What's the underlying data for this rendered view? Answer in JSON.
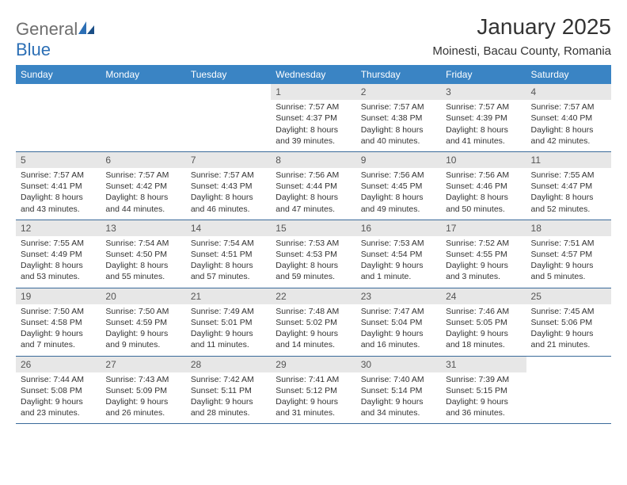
{
  "brand": {
    "name_a": "General",
    "name_b": "Blue"
  },
  "title": "January 2025",
  "location": "Moinesti, Bacau County, Romania",
  "colors": {
    "header_bg": "#3a84c4",
    "header_text": "#ffffff",
    "daynum_bg": "#e7e7e7",
    "rule": "#3a6a9a",
    "text": "#333333",
    "logo_gray": "#6e6e6e",
    "logo_blue": "#2c6fb5"
  },
  "day_labels": [
    "Sunday",
    "Monday",
    "Tuesday",
    "Wednesday",
    "Thursday",
    "Friday",
    "Saturday"
  ],
  "weeks": [
    [
      {
        "n": "",
        "sr": "",
        "ss": "",
        "dl": ""
      },
      {
        "n": "",
        "sr": "",
        "ss": "",
        "dl": ""
      },
      {
        "n": "",
        "sr": "",
        "ss": "",
        "dl": ""
      },
      {
        "n": "1",
        "sr": "Sunrise: 7:57 AM",
        "ss": "Sunset: 4:37 PM",
        "dl": "Daylight: 8 hours and 39 minutes."
      },
      {
        "n": "2",
        "sr": "Sunrise: 7:57 AM",
        "ss": "Sunset: 4:38 PM",
        "dl": "Daylight: 8 hours and 40 minutes."
      },
      {
        "n": "3",
        "sr": "Sunrise: 7:57 AM",
        "ss": "Sunset: 4:39 PM",
        "dl": "Daylight: 8 hours and 41 minutes."
      },
      {
        "n": "4",
        "sr": "Sunrise: 7:57 AM",
        "ss": "Sunset: 4:40 PM",
        "dl": "Daylight: 8 hours and 42 minutes."
      }
    ],
    [
      {
        "n": "5",
        "sr": "Sunrise: 7:57 AM",
        "ss": "Sunset: 4:41 PM",
        "dl": "Daylight: 8 hours and 43 minutes."
      },
      {
        "n": "6",
        "sr": "Sunrise: 7:57 AM",
        "ss": "Sunset: 4:42 PM",
        "dl": "Daylight: 8 hours and 44 minutes."
      },
      {
        "n": "7",
        "sr": "Sunrise: 7:57 AM",
        "ss": "Sunset: 4:43 PM",
        "dl": "Daylight: 8 hours and 46 minutes."
      },
      {
        "n": "8",
        "sr": "Sunrise: 7:56 AM",
        "ss": "Sunset: 4:44 PM",
        "dl": "Daylight: 8 hours and 47 minutes."
      },
      {
        "n": "9",
        "sr": "Sunrise: 7:56 AM",
        "ss": "Sunset: 4:45 PM",
        "dl": "Daylight: 8 hours and 49 minutes."
      },
      {
        "n": "10",
        "sr": "Sunrise: 7:56 AM",
        "ss": "Sunset: 4:46 PM",
        "dl": "Daylight: 8 hours and 50 minutes."
      },
      {
        "n": "11",
        "sr": "Sunrise: 7:55 AM",
        "ss": "Sunset: 4:47 PM",
        "dl": "Daylight: 8 hours and 52 minutes."
      }
    ],
    [
      {
        "n": "12",
        "sr": "Sunrise: 7:55 AM",
        "ss": "Sunset: 4:49 PM",
        "dl": "Daylight: 8 hours and 53 minutes."
      },
      {
        "n": "13",
        "sr": "Sunrise: 7:54 AM",
        "ss": "Sunset: 4:50 PM",
        "dl": "Daylight: 8 hours and 55 minutes."
      },
      {
        "n": "14",
        "sr": "Sunrise: 7:54 AM",
        "ss": "Sunset: 4:51 PM",
        "dl": "Daylight: 8 hours and 57 minutes."
      },
      {
        "n": "15",
        "sr": "Sunrise: 7:53 AM",
        "ss": "Sunset: 4:53 PM",
        "dl": "Daylight: 8 hours and 59 minutes."
      },
      {
        "n": "16",
        "sr": "Sunrise: 7:53 AM",
        "ss": "Sunset: 4:54 PM",
        "dl": "Daylight: 9 hours and 1 minute."
      },
      {
        "n": "17",
        "sr": "Sunrise: 7:52 AM",
        "ss": "Sunset: 4:55 PM",
        "dl": "Daylight: 9 hours and 3 minutes."
      },
      {
        "n": "18",
        "sr": "Sunrise: 7:51 AM",
        "ss": "Sunset: 4:57 PM",
        "dl": "Daylight: 9 hours and 5 minutes."
      }
    ],
    [
      {
        "n": "19",
        "sr": "Sunrise: 7:50 AM",
        "ss": "Sunset: 4:58 PM",
        "dl": "Daylight: 9 hours and 7 minutes."
      },
      {
        "n": "20",
        "sr": "Sunrise: 7:50 AM",
        "ss": "Sunset: 4:59 PM",
        "dl": "Daylight: 9 hours and 9 minutes."
      },
      {
        "n": "21",
        "sr": "Sunrise: 7:49 AM",
        "ss": "Sunset: 5:01 PM",
        "dl": "Daylight: 9 hours and 11 minutes."
      },
      {
        "n": "22",
        "sr": "Sunrise: 7:48 AM",
        "ss": "Sunset: 5:02 PM",
        "dl": "Daylight: 9 hours and 14 minutes."
      },
      {
        "n": "23",
        "sr": "Sunrise: 7:47 AM",
        "ss": "Sunset: 5:04 PM",
        "dl": "Daylight: 9 hours and 16 minutes."
      },
      {
        "n": "24",
        "sr": "Sunrise: 7:46 AM",
        "ss": "Sunset: 5:05 PM",
        "dl": "Daylight: 9 hours and 18 minutes."
      },
      {
        "n": "25",
        "sr": "Sunrise: 7:45 AM",
        "ss": "Sunset: 5:06 PM",
        "dl": "Daylight: 9 hours and 21 minutes."
      }
    ],
    [
      {
        "n": "26",
        "sr": "Sunrise: 7:44 AM",
        "ss": "Sunset: 5:08 PM",
        "dl": "Daylight: 9 hours and 23 minutes."
      },
      {
        "n": "27",
        "sr": "Sunrise: 7:43 AM",
        "ss": "Sunset: 5:09 PM",
        "dl": "Daylight: 9 hours and 26 minutes."
      },
      {
        "n": "28",
        "sr": "Sunrise: 7:42 AM",
        "ss": "Sunset: 5:11 PM",
        "dl": "Daylight: 9 hours and 28 minutes."
      },
      {
        "n": "29",
        "sr": "Sunrise: 7:41 AM",
        "ss": "Sunset: 5:12 PM",
        "dl": "Daylight: 9 hours and 31 minutes."
      },
      {
        "n": "30",
        "sr": "Sunrise: 7:40 AM",
        "ss": "Sunset: 5:14 PM",
        "dl": "Daylight: 9 hours and 34 minutes."
      },
      {
        "n": "31",
        "sr": "Sunrise: 7:39 AM",
        "ss": "Sunset: 5:15 PM",
        "dl": "Daylight: 9 hours and 36 minutes."
      },
      {
        "n": "",
        "sr": "",
        "ss": "",
        "dl": ""
      }
    ]
  ]
}
